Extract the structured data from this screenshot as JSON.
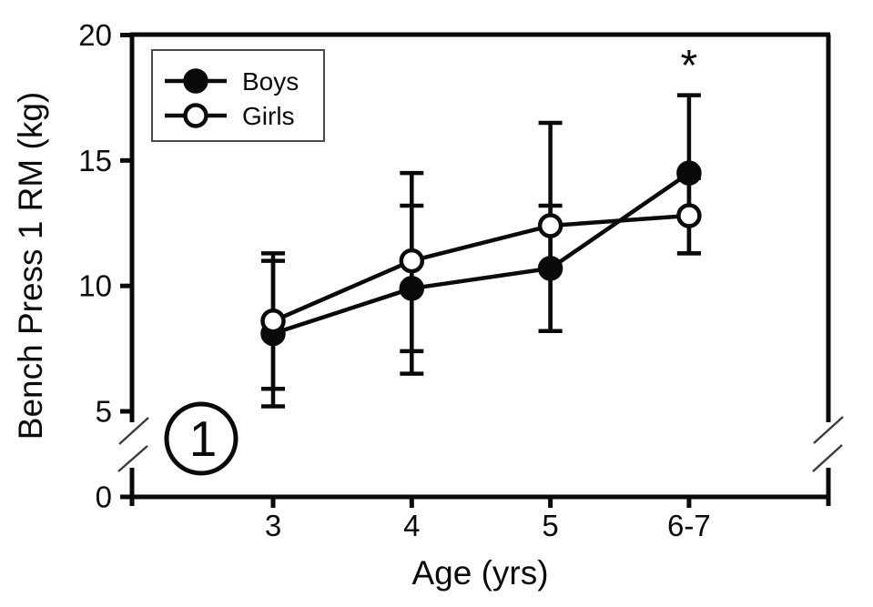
{
  "figure": {
    "background_color": "#ffffff",
    "foreground_color": "#0a0a0a",
    "panel_number": "1",
    "significance_marker": "*"
  },
  "chart_data": {
    "type": "line",
    "title": "",
    "xlabel": "Age (yrs)",
    "ylabel": "Bench Press 1 RM (kg)",
    "categories": [
      "3",
      "4",
      "5",
      "6-7"
    ],
    "y_axis": {
      "ticks": [
        20,
        15,
        10,
        5,
        0
      ],
      "range_shown": [
        0,
        20
      ],
      "axis_break": {
        "between": [
          0,
          5
        ]
      },
      "grid": false
    },
    "legend": {
      "position": "top-left",
      "entries": [
        {
          "label": "Boys",
          "marker": "filled-circle"
        },
        {
          "label": "Girls",
          "marker": "open-circle"
        }
      ]
    },
    "series": [
      {
        "name": "Boys",
        "marker": "filled-circle",
        "color": "#0a0a0a",
        "values": [
          8.1,
          9.9,
          10.7,
          14.5
        ],
        "err_upper": [
          11.0,
          13.2,
          13.2,
          17.6
        ],
        "err_lower": [
          5.2,
          6.5,
          8.2,
          11.3
        ]
      },
      {
        "name": "Girls",
        "marker": "open-circle",
        "color": "#0a0a0a",
        "values": [
          8.6,
          11.0,
          12.4,
          12.8
        ],
        "err_upper": [
          11.3,
          14.5,
          16.5,
          14.3
        ],
        "err_lower": [
          5.9,
          7.4,
          8.2,
          11.3
        ]
      }
    ],
    "annotations": [
      {
        "type": "significance",
        "text": "*",
        "category": "6-7",
        "position": "above-top-error-bar"
      },
      {
        "type": "panel-number",
        "text": "1",
        "style": "circled",
        "location": "bottom-left-inside-axes"
      }
    ]
  }
}
